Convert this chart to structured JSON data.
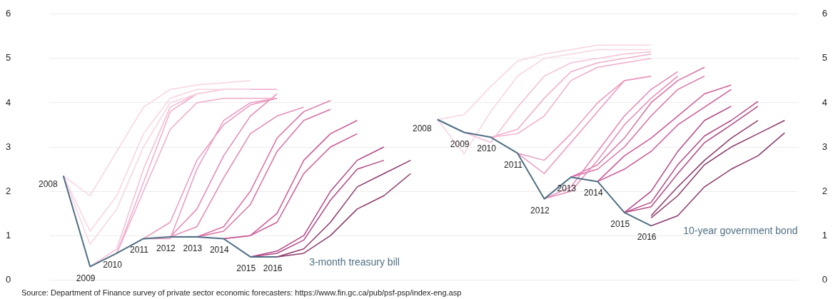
{
  "chart_data": {
    "type": "line",
    "categories": [
      null,
      null,
      null,
      null,
      null,
      null,
      null,
      null,
      null,
      null,
      null,
      null,
      null,
      null,
      null,
      null,
      null,
      null,
      null,
      null,
      null,
      null,
      null,
      null,
      null,
      null,
      null,
      null
    ],
    "ylim": [
      0,
      6
    ],
    "yticks": [
      0,
      1,
      2,
      3,
      4,
      5,
      6
    ],
    "y2lim": [
      0,
      6
    ],
    "y2ticks": [
      0,
      1,
      2,
      3,
      4,
      5,
      6
    ],
    "grid": "y",
    "legend": false,
    "marker": "none",
    "tick_labels": "y",
    "annotations": [
      "2008",
      {
        "text": "2009",
        "y": 0.3
      },
      {
        "text": "2010",
        "y": 0.6
      },
      {
        "text": "2011",
        "y": 0.93
      },
      {
        "text": "2012",
        "y": 0.97
      },
      {
        "text": "2013",
        "y": 0.97
      },
      {
        "text": "2014",
        "y": 0.93
      },
      {
        "text": "2015",
        "y": 0.52
      },
      {
        "text": "2016",
        "y": 0.52
      },
      "2008",
      {
        "text": "2009",
        "y": 3.33
      },
      {
        "text": "2010",
        "y": 3.22
      },
      {
        "text": "2011",
        "y": 2.86
      },
      {
        "text": "2012",
        "y": 1.83
      },
      {
        "text": "2013",
        "y": 2.32
      },
      {
        "text": "2014",
        "y": 2.22
      },
      {
        "text": "2015",
        "y": 1.52
      },
      {
        "text": "2016",
        "y": 1.22
      },
      "Source:  Department of Finance survey of private sector economic forecasters: https://www.fin.gc.ca/pub/psf-psp/index-eng.asp"
    ],
    "series": [
      {
        "name": "3-month treasury bill",
        "color": "#4f6f84",
        "values": [
          2.35,
          0.3,
          0.6,
          0.93,
          0.97,
          0.97,
          0.93,
          0.52,
          0.52,
          null,
          null,
          null,
          null,
          null,
          null,
          null,
          null,
          null,
          null,
          null,
          null,
          null,
          null,
          null,
          null,
          null,
          null,
          null
        ]
      },
      {
        "name": "10-year government bond",
        "color": "#4f6f84",
        "values": [
          null,
          null,
          null,
          null,
          null,
          null,
          null,
          null,
          null,
          null,
          null,
          null,
          null,
          null,
          3.62,
          3.33,
          3.22,
          2.86,
          1.83,
          2.32,
          2.22,
          1.52,
          1.22,
          null,
          null,
          null,
          null,
          null
        ]
      },
      {
        "color": "#f8d3e3",
        "values": [
          2.35,
          1.9,
          2.9,
          3.9,
          4.3,
          4.4,
          4.45,
          4.5,
          null,
          null,
          null,
          null,
          null,
          null,
          null,
          null,
          null,
          null,
          null,
          null,
          null,
          null,
          null,
          null,
          null,
          null,
          null,
          null
        ]
      },
      {
        "color": "#f8d3e3",
        "values": [
          2.35,
          1.1,
          1.9,
          3.3,
          4.1,
          4.3,
          4.3,
          4.3,
          null,
          null,
          null,
          null,
          null,
          null,
          null,
          null,
          null,
          null,
          null,
          null,
          null,
          null,
          null,
          null,
          null,
          null,
          null,
          null
        ]
      },
      {
        "color": "#f8d3e3",
        "values": [
          2.35,
          0.8,
          1.6,
          3.0,
          4.0,
          4.2,
          4.3,
          4.3,
          null,
          null,
          null,
          null,
          null,
          null,
          null,
          null,
          null,
          null,
          null,
          null,
          null,
          null,
          null,
          null,
          null,
          null,
          null,
          null
        ]
      },
      {
        "color": "#f4bdd5",
        "values": [
          null,
          0.3,
          0.7,
          2.5,
          3.9,
          4.2,
          4.3,
          4.3,
          null,
          null,
          null,
          null,
          null,
          null,
          null,
          null,
          null,
          null,
          null,
          null,
          null,
          null,
          null,
          null,
          null,
          null,
          null,
          null
        ]
      },
      {
        "color": "#f0aacb",
        "values": [
          null,
          null,
          0.6,
          2.2,
          3.8,
          4.2,
          4.3,
          4.3,
          4.3,
          null,
          null,
          null,
          null,
          null,
          null,
          null,
          null,
          null,
          null,
          null,
          null,
          null,
          null,
          null,
          null,
          null,
          null,
          null
        ]
      },
      {
        "color": "#f0aacb",
        "values": [
          null,
          null,
          0.6,
          2.0,
          3.4,
          4.0,
          4.1,
          4.1,
          4.1,
          null,
          null,
          null,
          null,
          null,
          null,
          null,
          null,
          null,
          null,
          null,
          null,
          null,
          null,
          null,
          null,
          null,
          null,
          null
        ]
      },
      {
        "color": "#eb98c0",
        "values": [
          null,
          null,
          null,
          0.93,
          1.3,
          2.7,
          3.5,
          3.95,
          4.1,
          null,
          null,
          null,
          null,
          null,
          null,
          null,
          null,
          null,
          null,
          null,
          null,
          null,
          null,
          null,
          null,
          null,
          null,
          null
        ]
      },
      {
        "color": "#eb98c0",
        "values": [
          null,
          null,
          null,
          0.93,
          0.93,
          2.5,
          3.6,
          4.0,
          4.1,
          null,
          null,
          null,
          null,
          null,
          null,
          null,
          null,
          null,
          null,
          null,
          null,
          null,
          null,
          null,
          null,
          null,
          null,
          null
        ]
      },
      {
        "color": "#e486b5",
        "values": [
          null,
          null,
          null,
          null,
          0.97,
          1.6,
          2.8,
          3.7,
          4.2,
          null,
          null,
          null,
          null,
          null,
          null,
          null,
          null,
          null,
          null,
          null,
          null,
          null,
          null,
          null,
          null,
          null,
          null,
          null
        ]
      },
      {
        "color": "#e486b5",
        "values": [
          null,
          null,
          null,
          null,
          0.97,
          1.2,
          2.3,
          3.3,
          3.7,
          3.9,
          null,
          null,
          null,
          null,
          null,
          null,
          null,
          null,
          null,
          null,
          null,
          null,
          null,
          null,
          null,
          null,
          null,
          null
        ]
      },
      {
        "color": "#da70a6",
        "values": [
          null,
          null,
          null,
          null,
          null,
          0.97,
          1.2,
          2.0,
          3.2,
          3.8,
          4.05,
          null,
          null,
          null,
          null,
          null,
          null,
          null,
          null,
          null,
          null,
          null,
          null,
          null,
          null,
          null,
          null,
          null
        ]
      },
      {
        "color": "#da70a6",
        "values": [
          null,
          null,
          null,
          null,
          null,
          0.97,
          1.1,
          1.7,
          2.9,
          3.6,
          3.85,
          null,
          null,
          null,
          null,
          null,
          null,
          null,
          null,
          null,
          null,
          null,
          null,
          null,
          null,
          null,
          null,
          null
        ]
      },
      {
        "color": "#cc5896",
        "values": [
          null,
          null,
          null,
          null,
          null,
          null,
          0.93,
          1.0,
          1.5,
          2.7,
          3.3,
          3.6,
          null,
          null,
          null,
          null,
          null,
          null,
          null,
          null,
          null,
          null,
          null,
          null,
          null,
          null,
          null,
          null
        ]
      },
      {
        "color": "#cc5896",
        "values": [
          null,
          null,
          null,
          null,
          null,
          null,
          0.93,
          1.0,
          1.3,
          2.4,
          3.0,
          3.3,
          null,
          null,
          null,
          null,
          null,
          null,
          null,
          null,
          null,
          null,
          null,
          null,
          null,
          null,
          null,
          null
        ]
      },
      {
        "color": "#b24784",
        "values": [
          null,
          null,
          null,
          null,
          null,
          null,
          null,
          0.52,
          0.65,
          1.0,
          2.0,
          2.7,
          3.0,
          null,
          null,
          null,
          null,
          null,
          null,
          null,
          null,
          null,
          null,
          null,
          null,
          null,
          null,
          null
        ]
      },
      {
        "color": "#b24784",
        "values": [
          null,
          null,
          null,
          null,
          null,
          null,
          null,
          0.52,
          0.6,
          0.9,
          1.8,
          2.5,
          2.7,
          null,
          null,
          null,
          null,
          null,
          null,
          null,
          null,
          null,
          null,
          null,
          null,
          null,
          null,
          null
        ]
      },
      {
        "color": "#8c3a6c",
        "values": [
          null,
          null,
          null,
          null,
          null,
          null,
          null,
          null,
          0.52,
          0.7,
          1.3,
          2.1,
          2.4,
          2.7,
          null,
          null,
          null,
          null,
          null,
          null,
          null,
          null,
          null,
          null,
          null,
          null,
          null,
          null
        ]
      },
      {
        "color": "#8c3a6c",
        "values": [
          null,
          null,
          null,
          null,
          null,
          null,
          null,
          null,
          0.52,
          0.6,
          1.0,
          1.6,
          1.9,
          2.4,
          null,
          null,
          null,
          null,
          null,
          null,
          null,
          null,
          null,
          null,
          null,
          null,
          null,
          null
        ]
      },
      {
        "color": "#f8d3e3",
        "values": [
          null,
          null,
          null,
          null,
          null,
          null,
          null,
          null,
          null,
          null,
          null,
          null,
          null,
          null,
          3.62,
          3.73,
          4.37,
          4.94,
          5.1,
          5.2,
          5.3,
          5.3,
          5.3,
          null,
          null,
          null,
          null,
          null
        ]
      },
      {
        "color": "#f8d3e3",
        "values": [
          null,
          null,
          null,
          null,
          null,
          null,
          null,
          null,
          null,
          null,
          null,
          null,
          null,
          null,
          3.62,
          2.85,
          3.8,
          4.6,
          5.0,
          5.1,
          5.2,
          5.2,
          5.2,
          null,
          null,
          null,
          null,
          null
        ]
      },
      {
        "color": "#f4bdd5",
        "values": [
          null,
          null,
          null,
          null,
          null,
          null,
          null,
          null,
          null,
          null,
          null,
          null,
          null,
          null,
          null,
          3.33,
          3.1,
          3.9,
          4.6,
          4.9,
          5.0,
          5.1,
          5.15,
          null,
          null,
          null,
          null,
          null
        ]
      },
      {
        "color": "#f0aacb",
        "values": [
          null,
          null,
          null,
          null,
          null,
          null,
          null,
          null,
          null,
          null,
          null,
          null,
          null,
          null,
          null,
          null,
          3.22,
          3.4,
          4.1,
          4.7,
          4.9,
          5.0,
          5.1,
          null,
          null,
          null,
          null,
          null
        ]
      },
      {
        "color": "#f0aacb",
        "values": [
          null,
          null,
          null,
          null,
          null,
          null,
          null,
          null,
          null,
          null,
          null,
          null,
          null,
          null,
          null,
          null,
          3.22,
          3.3,
          3.7,
          4.5,
          4.8,
          4.9,
          5.0,
          null,
          null,
          null,
          null,
          null
        ]
      },
      {
        "color": "#eb98c0",
        "values": [
          null,
          null,
          null,
          null,
          null,
          null,
          null,
          null,
          null,
          null,
          null,
          null,
          null,
          null,
          null,
          null,
          null,
          2.86,
          2.7,
          3.3,
          4.0,
          4.5,
          4.6,
          null,
          null,
          null,
          null,
          null
        ]
      },
      {
        "color": "#eb98c0",
        "values": [
          null,
          null,
          null,
          null,
          null,
          null,
          null,
          null,
          null,
          null,
          null,
          null,
          null,
          null,
          null,
          null,
          null,
          2.86,
          2.4,
          3.1,
          3.8,
          4.5,
          4.6,
          null,
          null,
          null,
          null,
          null
        ]
      },
      {
        "color": "#e486b5",
        "values": [
          null,
          null,
          null,
          null,
          null,
          null,
          null,
          null,
          null,
          null,
          null,
          null,
          null,
          null,
          null,
          null,
          null,
          null,
          1.83,
          2.1,
          2.9,
          3.7,
          4.3,
          4.7,
          null,
          null,
          null,
          null
        ]
      },
      {
        "color": "#e486b5",
        "values": [
          null,
          null,
          null,
          null,
          null,
          null,
          null,
          null,
          null,
          null,
          null,
          null,
          null,
          null,
          null,
          null,
          null,
          null,
          1.83,
          2.0,
          2.7,
          3.5,
          4.1,
          4.6,
          null,
          null,
          null,
          null
        ]
      },
      {
        "color": "#da70a6",
        "values": [
          null,
          null,
          null,
          null,
          null,
          null,
          null,
          null,
          null,
          null,
          null,
          null,
          null,
          null,
          null,
          null,
          null,
          null,
          null,
          2.32,
          2.6,
          3.2,
          4.0,
          4.5,
          4.8,
          null,
          null,
          null
        ]
      },
      {
        "color": "#da70a6",
        "values": [
          null,
          null,
          null,
          null,
          null,
          null,
          null,
          null,
          null,
          null,
          null,
          null,
          null,
          null,
          null,
          null,
          null,
          null,
          null,
          2.32,
          2.5,
          3.0,
          3.7,
          4.3,
          4.6,
          null,
          null,
          null
        ]
      },
      {
        "color": "#cc5896",
        "values": [
          null,
          null,
          null,
          null,
          null,
          null,
          null,
          null,
          null,
          null,
          null,
          null,
          null,
          null,
          null,
          null,
          null,
          null,
          null,
          null,
          2.22,
          2.8,
          3.2,
          3.7,
          4.2,
          4.4,
          null,
          null
        ]
      },
      {
        "color": "#cc5896",
        "values": [
          null,
          null,
          null,
          null,
          null,
          null,
          null,
          null,
          null,
          null,
          null,
          null,
          null,
          null,
          null,
          null,
          null,
          null,
          null,
          null,
          2.22,
          2.5,
          2.9,
          3.5,
          3.9,
          4.3,
          null,
          null
        ]
      },
      {
        "color": "#b24784",
        "values": [
          null,
          null,
          null,
          null,
          null,
          null,
          null,
          null,
          null,
          null,
          null,
          null,
          null,
          null,
          null,
          null,
          null,
          null,
          null,
          null,
          null,
          1.52,
          2.0,
          2.9,
          3.6,
          3.92,
          null,
          null
        ]
      },
      {
        "color": "#b24784",
        "values": [
          null,
          null,
          null,
          null,
          null,
          null,
          null,
          null,
          null,
          null,
          null,
          null,
          null,
          null,
          null,
          null,
          null,
          null,
          null,
          null,
          null,
          1.52,
          1.75,
          2.6,
          3.25,
          3.6,
          4.03,
          null
        ]
      },
      {
        "color": "#b24784",
        "values": [
          null,
          null,
          null,
          null,
          null,
          null,
          null,
          null,
          null,
          null,
          null,
          null,
          null,
          null,
          null,
          null,
          null,
          null,
          null,
          null,
          null,
          1.52,
          1.65,
          2.4,
          3.1,
          3.5,
          3.92,
          null
        ]
      },
      {
        "color": "#8c3a6c",
        "values": [
          null,
          null,
          null,
          null,
          null,
          null,
          null,
          null,
          null,
          null,
          null,
          null,
          null,
          null,
          null,
          null,
          null,
          null,
          null,
          null,
          null,
          null,
          1.45,
          2.1,
          2.7,
          3.2,
          3.6,
          null
        ]
      },
      {
        "color": "#8c3a6c",
        "values": [
          null,
          null,
          null,
          null,
          null,
          null,
          null,
          null,
          null,
          null,
          null,
          null,
          null,
          null,
          null,
          null,
          null,
          null,
          null,
          null,
          null,
          null,
          1.4,
          1.9,
          2.6,
          3.0,
          3.3,
          3.6
        ]
      },
      {
        "color": "#8c3a6c",
        "values": [
          null,
          null,
          null,
          null,
          null,
          null,
          null,
          null,
          null,
          null,
          null,
          null,
          null,
          null,
          null,
          null,
          null,
          null,
          null,
          null,
          null,
          null,
          1.22,
          1.45,
          2.1,
          2.5,
          2.8,
          3.32
        ]
      }
    ]
  }
}
